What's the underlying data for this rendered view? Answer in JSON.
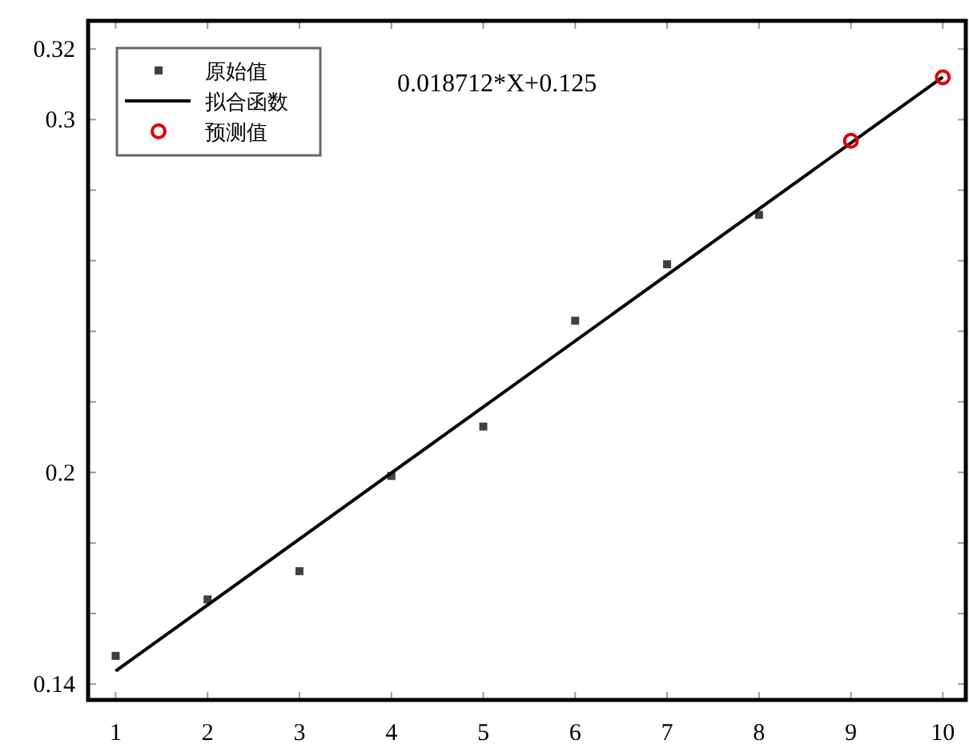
{
  "chart_data": {
    "type": "scatter",
    "xlim": [
      0.7,
      10.25
    ],
    "ylim": [
      0.1355,
      0.328
    ],
    "xticks": [
      1,
      2,
      3,
      4,
      5,
      6,
      7,
      8,
      9,
      10
    ],
    "yticks": [
      0.14,
      {
        "value": 0.16,
        "label": null
      },
      {
        "value": 0.18,
        "label": null
      },
      0.2,
      {
        "value": 0.22,
        "label": null
      },
      {
        "value": 0.24,
        "label": null
      },
      {
        "value": 0.26,
        "label": null
      },
      {
        "value": 0.28,
        "label": null
      },
      0.3,
      0.32
    ],
    "series": [
      {
        "name": "原始值",
        "marker": "square",
        "color": "#404040",
        "x": [
          1,
          2,
          3,
          4,
          5,
          6,
          7,
          8
        ],
        "values": [
          0.148,
          0.164,
          0.172,
          0.199,
          0.213,
          0.243,
          0.259,
          0.273
        ]
      },
      {
        "name": "拟合函数",
        "type": "line",
        "marker": "none",
        "line_style": "solid",
        "color": "#000000",
        "x": [
          1,
          10
        ],
        "values": [
          0.1437,
          0.3121
        ]
      },
      {
        "name": "预测值",
        "marker": "circle",
        "color": "#e00000",
        "x": [
          9,
          10
        ],
        "values": [
          0.294,
          0.312
        ]
      }
    ],
    "annotations": [
      "0.018712*X+0.125"
    ],
    "legend": "top left",
    "grid": false
  }
}
